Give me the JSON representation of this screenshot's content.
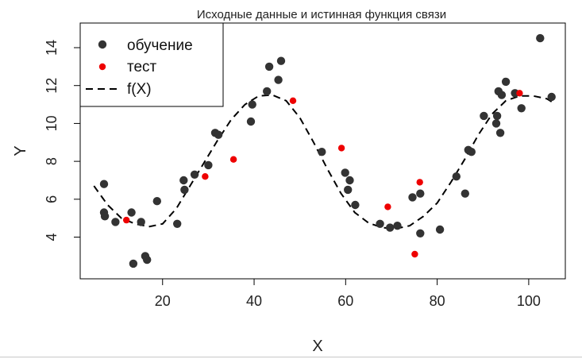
{
  "chart_data": {
    "type": "scatter",
    "title": "Исходные данные и истинная функция связи",
    "xlabel": "X",
    "ylabel": "Y",
    "xlim": [
      2,
      108
    ],
    "ylim": [
      1.8,
      15.3
    ],
    "xticks": [
      20,
      40,
      60,
      80,
      100
    ],
    "yticks": [
      4,
      6,
      8,
      10,
      12,
      14
    ],
    "legend_position": "top-left",
    "legend": [
      {
        "label": "обучение",
        "kind": "point",
        "color": "#333333"
      },
      {
        "label": "тест",
        "kind": "point",
        "color": "#ee0000"
      },
      {
        "label": "f(X)",
        "kind": "dashed-line",
        "color": "#000000"
      }
    ],
    "series": [
      {
        "name": "обучение",
        "color": "#333333",
        "points": [
          [
            7.2,
            6.8
          ],
          [
            7.2,
            5.3
          ],
          [
            7.4,
            5.1
          ],
          [
            9.7,
            4.8
          ],
          [
            13.2,
            5.3
          ],
          [
            13.6,
            2.6
          ],
          [
            15.3,
            4.8
          ],
          [
            16.2,
            3.0
          ],
          [
            16.6,
            2.8
          ],
          [
            18.8,
            5.9
          ],
          [
            23.2,
            4.7
          ],
          [
            24.6,
            7.0
          ],
          [
            24.8,
            6.5
          ],
          [
            27.0,
            7.3
          ],
          [
            30.0,
            7.8
          ],
          [
            31.5,
            9.5
          ],
          [
            32.2,
            9.4
          ],
          [
            39.3,
            10.1
          ],
          [
            39.6,
            11.0
          ],
          [
            42.8,
            11.7
          ],
          [
            43.3,
            13.0
          ],
          [
            45.3,
            12.3
          ],
          [
            45.9,
            13.3
          ],
          [
            54.8,
            8.5
          ],
          [
            59.9,
            7.4
          ],
          [
            60.5,
            6.5
          ],
          [
            60.9,
            7.0
          ],
          [
            62.1,
            5.7
          ],
          [
            67.5,
            4.7
          ],
          [
            69.7,
            4.5
          ],
          [
            71.3,
            4.6
          ],
          [
            74.6,
            6.1
          ],
          [
            76.3,
            6.3
          ],
          [
            76.3,
            4.2
          ],
          [
            80.6,
            4.4
          ],
          [
            84.2,
            7.2
          ],
          [
            86.1,
            6.3
          ],
          [
            86.8,
            8.6
          ],
          [
            87.5,
            8.5
          ],
          [
            90.2,
            10.4
          ],
          [
            92.9,
            10.0
          ],
          [
            93.1,
            10.4
          ],
          [
            93.4,
            11.7
          ],
          [
            93.8,
            9.5
          ],
          [
            94.1,
            11.5
          ],
          [
            95.0,
            12.2
          ],
          [
            97.0,
            11.6
          ],
          [
            98.4,
            10.8
          ],
          [
            102.5,
            14.5
          ],
          [
            105.0,
            11.4
          ]
        ]
      },
      {
        "name": "тест",
        "color": "#ee0000",
        "points": [
          [
            12.1,
            4.9
          ],
          [
            29.3,
            7.2
          ],
          [
            35.5,
            8.1
          ],
          [
            48.5,
            11.2
          ],
          [
            59.1,
            8.7
          ],
          [
            69.2,
            5.6
          ],
          [
            75.1,
            3.1
          ],
          [
            76.2,
            6.9
          ],
          [
            98.0,
            11.6
          ]
        ]
      }
    ],
    "true_function": {
      "name": "f(X)",
      "color": "#000000",
      "style": "dashed",
      "points": [
        [
          5,
          6.7
        ],
        [
          8,
          5.7
        ],
        [
          11,
          5.0
        ],
        [
          14,
          4.7
        ],
        [
          17,
          4.55
        ],
        [
          20,
          4.7
        ],
        [
          23,
          5.5
        ],
        [
          26,
          6.7
        ],
        [
          29,
          7.9
        ],
        [
          32,
          9.1
        ],
        [
          35,
          10.2
        ],
        [
          38,
          11.0
        ],
        [
          41,
          11.45
        ],
        [
          44,
          11.5
        ],
        [
          47,
          11.2
        ],
        [
          50,
          10.3
        ],
        [
          53,
          9.0
        ],
        [
          56,
          7.6
        ],
        [
          59,
          6.3
        ],
        [
          62,
          5.3
        ],
        [
          65,
          4.75
        ],
        [
          68,
          4.5
        ],
        [
          71,
          4.45
        ],
        [
          74,
          4.6
        ],
        [
          77,
          5.1
        ],
        [
          80,
          5.8
        ],
        [
          83,
          6.9
        ],
        [
          86,
          8.1
        ],
        [
          89,
          9.4
        ],
        [
          92,
          10.5
        ],
        [
          95,
          11.2
        ],
        [
          98,
          11.45
        ],
        [
          101,
          11.45
        ],
        [
          104,
          11.3
        ],
        [
          105,
          11.15
        ]
      ]
    }
  }
}
